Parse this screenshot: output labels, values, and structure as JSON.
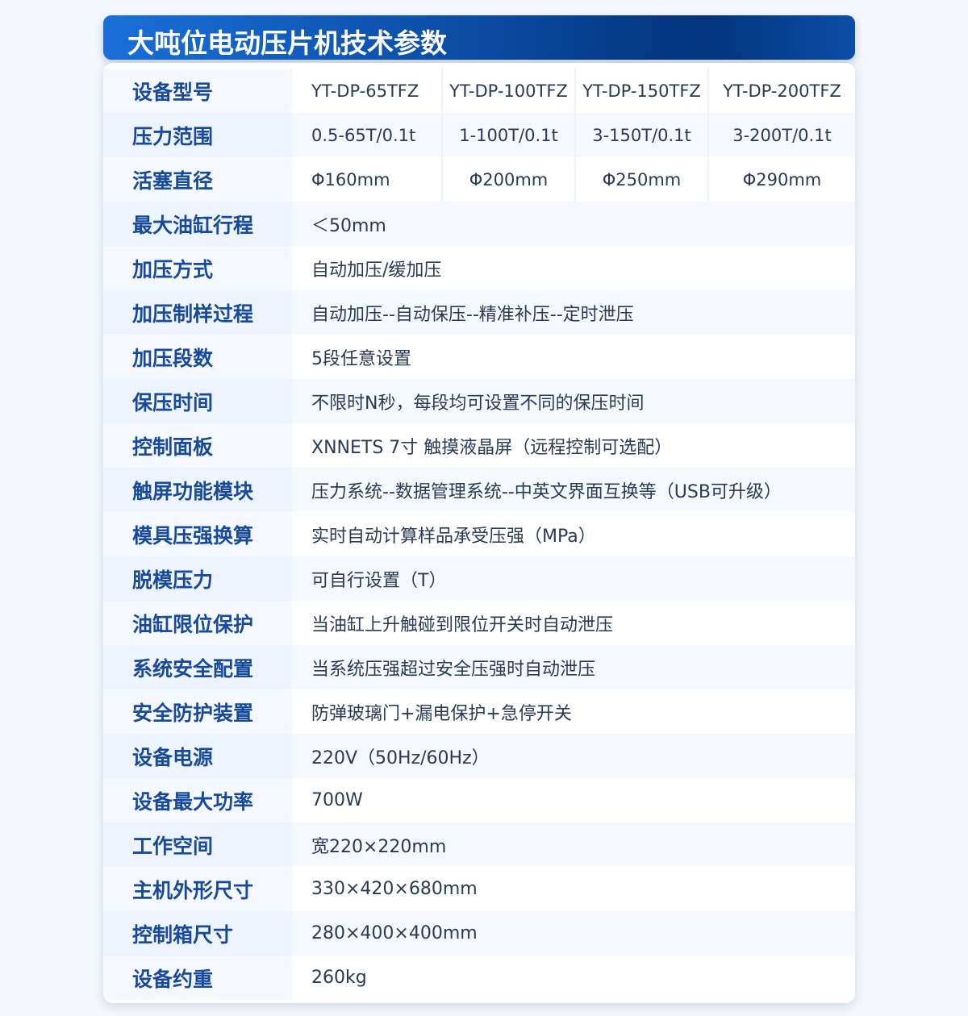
{
  "title": "大吨位电动压片机技术参数",
  "colors": {
    "label": "#174a9c",
    "value": "#2a3a56",
    "header_start": "#1a6fd8",
    "header_end": "#04347c"
  },
  "multi_rows": [
    {
      "label": "设备型号",
      "values": [
        "YT-DP-65TFZ",
        "YT-DP-100TFZ",
        "YT-DP-150TFZ",
        "YT-DP-200TFZ"
      ]
    },
    {
      "label": "压力范围",
      "values": [
        "0.5-65T/0.1t",
        "1-100T/0.1t",
        "3-150T/0.1t",
        "3-200T/0.1t"
      ]
    },
    {
      "label": "活塞直径",
      "values": [
        "Φ160mm",
        "Φ200mm",
        "Φ250mm",
        "Φ290mm"
      ]
    }
  ],
  "rows": [
    {
      "label": "最大油缸行程",
      "value": "＜50mm"
    },
    {
      "label": "加压方式",
      "value": "自动加压/缓加压"
    },
    {
      "label": "加压制样过程",
      "value": "自动加压--自动保压--精准补压--定时泄压"
    },
    {
      "label": "加压段数",
      "value": "5段任意设置"
    },
    {
      "label": "保压时间",
      "value": "不限时N秒，每段均可设置不同的保压时间"
    },
    {
      "label": "控制面板",
      "value": "XNNETS 7寸 触摸液晶屏（远程控制可选配）"
    },
    {
      "label": "触屏功能模块",
      "value": "压力系统--数据管理系统--中英文界面互换等（USB可升级）"
    },
    {
      "label": "模具压强换算",
      "value": "实时自动计算样品承受压强（MPa）"
    },
    {
      "label": "脱模压力",
      "value": "可自行设置（T）"
    },
    {
      "label": "油缸限位保护",
      "value": "当油缸上升触碰到限位开关时自动泄压"
    },
    {
      "label": "系统安全配置",
      "value": "当系统压强超过安全压强时自动泄压"
    },
    {
      "label": "安全防护装置",
      "value": "防弹玻璃门+漏电保护+急停开关"
    },
    {
      "label": "设备电源",
      "value": "220V（50Hz/60Hz）"
    },
    {
      "label": "设备最大功率",
      "value": "700W"
    },
    {
      "label": "工作空间",
      "value": "宽220×220mm"
    },
    {
      "label": "主机外形尺寸",
      "value": "330×420×680mm"
    },
    {
      "label": "控制箱尺寸",
      "value": "280×400×400mm"
    },
    {
      "label": "设备约重",
      "value": "260kg"
    }
  ]
}
